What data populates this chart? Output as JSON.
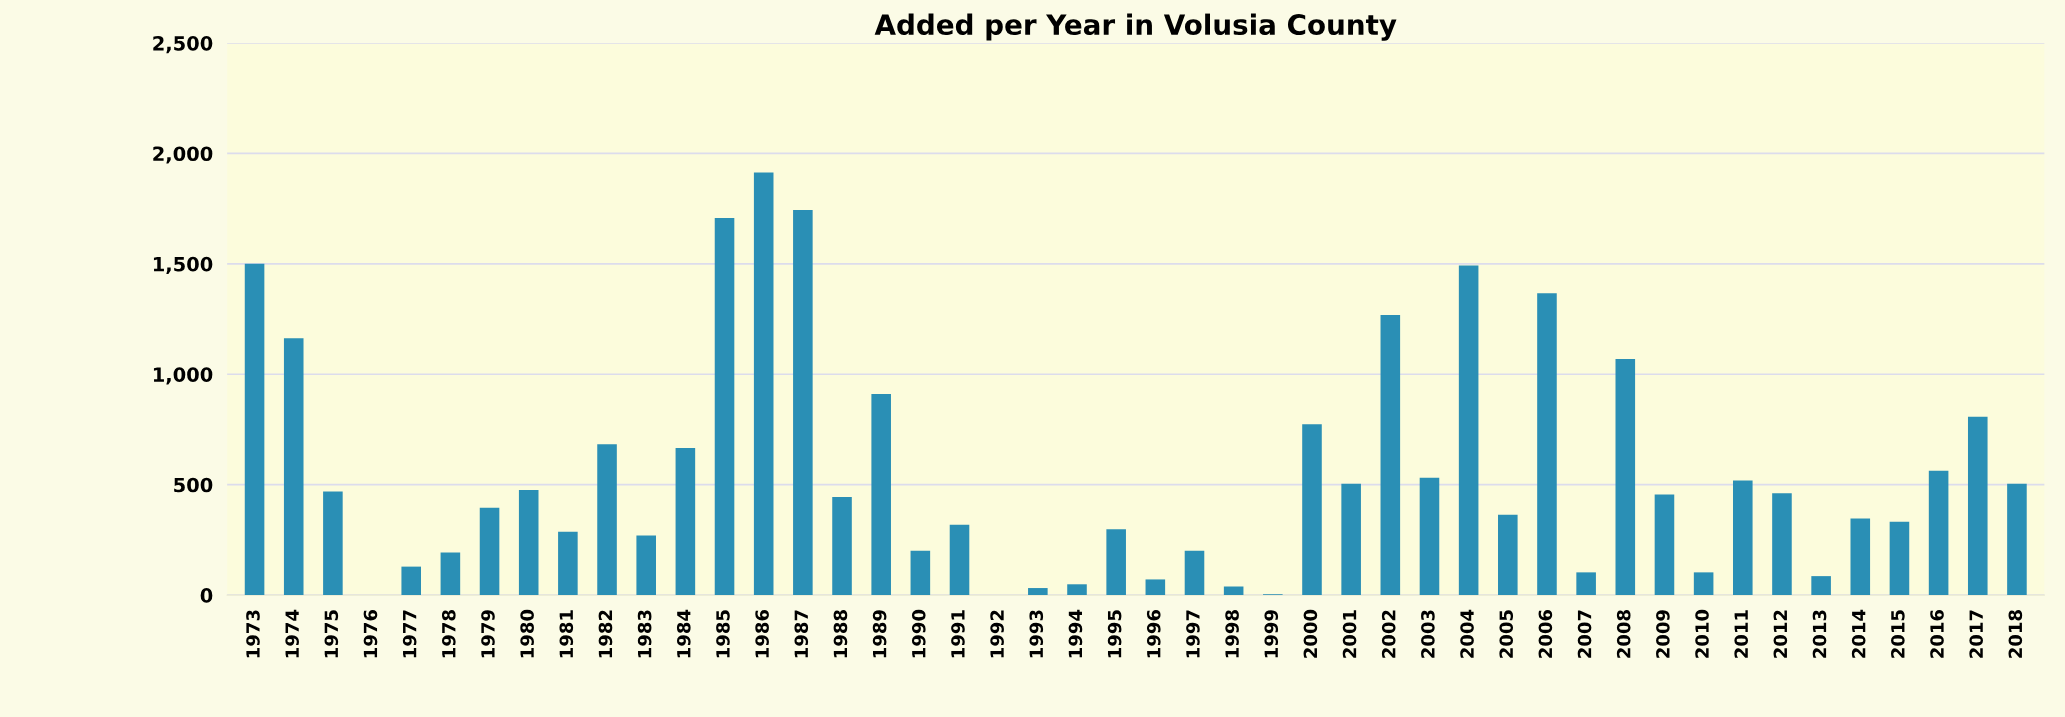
{
  "chart_data": {
    "type": "bar",
    "title": "Added per Year in Volusia County",
    "categories": [
      "1973",
      "1974",
      "1975",
      "1976",
      "1977",
      "1978",
      "1979",
      "1980",
      "1981",
      "1982",
      "1983",
      "1984",
      "1985",
      "1986",
      "1987",
      "1988",
      "1989",
      "1990",
      "1991",
      "1992",
      "1993",
      "1994",
      "1995",
      "1996",
      "1997",
      "1998",
      "1999",
      "2000",
      "2001",
      "2002",
      "2003",
      "2004",
      "2005",
      "2006",
      "2007",
      "2008",
      "2009",
      "2010",
      "2011",
      "2012",
      "2013",
      "2014",
      "2015",
      "2016",
      "2017",
      "2018"
    ],
    "values": [
      1500,
      1163,
      469,
      0,
      129,
      193,
      396,
      476,
      287,
      683,
      270,
      666,
      1708,
      1914,
      1744,
      444,
      911,
      201,
      319,
      0,
      32,
      49,
      298,
      71,
      201,
      39,
      4,
      774,
      504,
      1268,
      531,
      1493,
      364,
      1367,
      103,
      1069,
      456,
      103,
      519,
      461,
      86,
      347,
      332,
      563,
      808,
      504
    ],
    "color": "#2a8fb5",
    "ylim": [
      0,
      2500
    ],
    "yticks": [
      {
        "value": 0,
        "label": "0"
      },
      {
        "value": 500,
        "label": "500"
      },
      {
        "value": 1000,
        "label": "1,000"
      },
      {
        "value": 1500,
        "label": "1,500"
      },
      {
        "value": 2000,
        "label": "2,000"
      },
      {
        "value": 2500,
        "label": "2,500"
      }
    ],
    "grid": "y"
  }
}
